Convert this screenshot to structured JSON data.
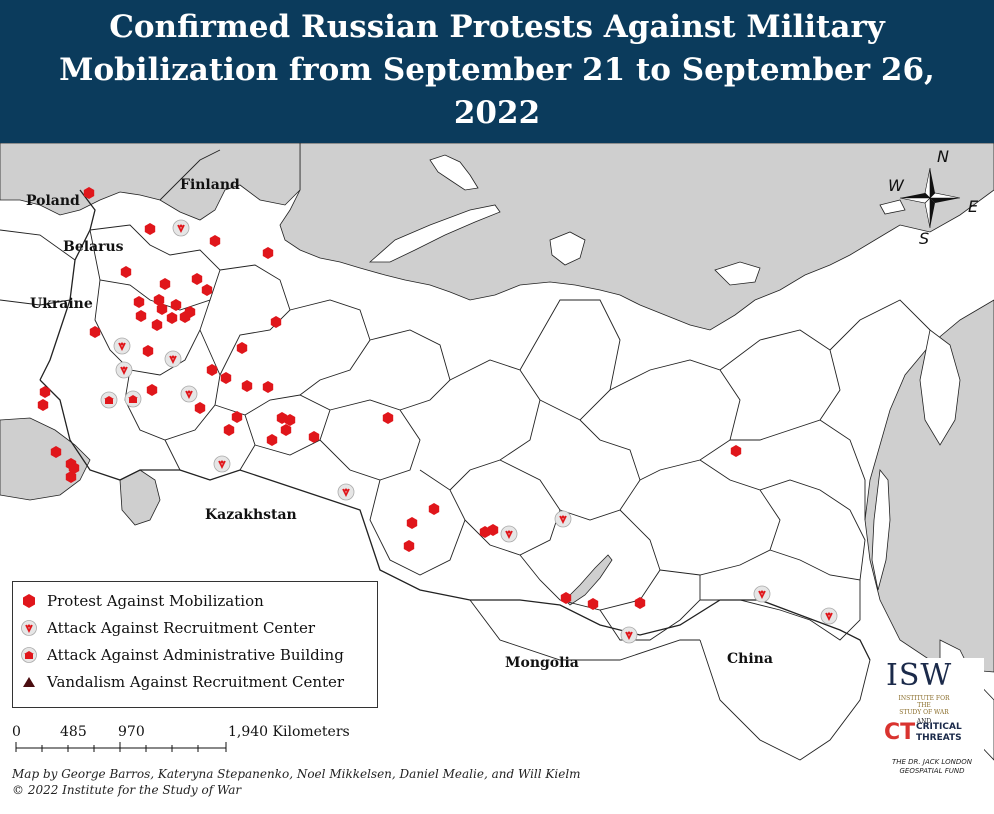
{
  "title": "Confirmed Russian Protests Against Military Mobilization from September 21 to September 26, 2022",
  "colors": {
    "header_bg": "#0b3b5c",
    "land": "#ffffff",
    "water": "#cfcfcf",
    "protest": "#e0161b",
    "attack_ring": "#d9d9d9"
  },
  "countries": {
    "finland": "Finland",
    "poland": "Poland",
    "belarus": "Belarus",
    "ukraine": "Ukraine",
    "kazakhstan": "Kazakhstan",
    "mongolia": "Mongolia",
    "china": "China"
  },
  "compass": {
    "n": "N",
    "s": "S",
    "e": "E",
    "w": "W"
  },
  "legend": {
    "protest": "Protest Against Mobilization",
    "recruitment": "Attack Against Recruitment Center",
    "admin": "Attack Against Administrative Building",
    "vandalism": "Vandalism Against Recruitment Center"
  },
  "scale": {
    "t0": "0",
    "t1": "485",
    "t2": "970",
    "t3": "1,940 Kilometers"
  },
  "credit": {
    "line1": "Map by George Barros, Kateryna Stepanenko, Noel Mikkelsen, Daniel Mealie, and Will Kielm",
    "line2": "© 2022 Institute for the Study of War"
  },
  "logos": {
    "isw": "ISW",
    "isw_sub1": "INSTITUTE FOR THE",
    "isw_sub2": "STUDY OF WAR",
    "and": "AND",
    "ct": "CT",
    "ct_word1": "CRITICAL",
    "ct_word2": "THREATS",
    "fund1": "THE DR. JACK LONDON",
    "fund2": "GEOSPATIAL FUND"
  }
}
